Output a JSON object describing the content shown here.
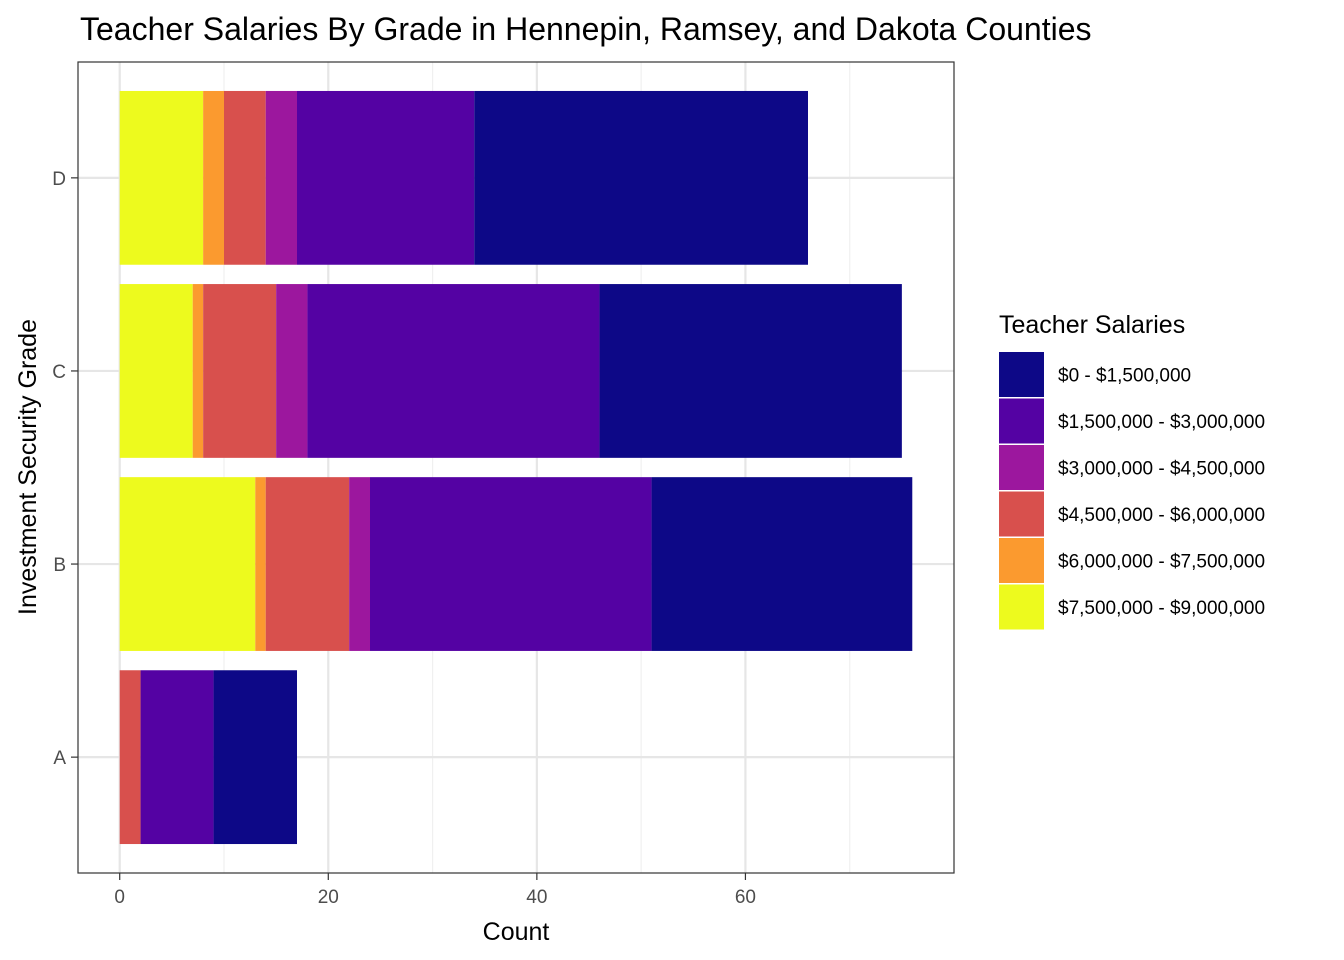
{
  "chart_data": {
    "type": "bar",
    "orientation": "horizontal",
    "stacked": true,
    "title": "Teacher Salaries By Grade in Hennepin, Ramsey, and Dakota Counties",
    "xlabel": "Count",
    "ylabel": "Investment Security Grade",
    "xlim": [
      -4,
      80
    ],
    "x_ticks": [
      0,
      20,
      40,
      60
    ],
    "categories": [
      "A",
      "B",
      "C",
      "D"
    ],
    "legend": {
      "title": "Teacher Salaries",
      "position": "right"
    },
    "series": [
      {
        "name": "$0 - $1,500,000",
        "color": "#0d0887",
        "values": [
          8,
          25,
          29,
          32
        ]
      },
      {
        "name": "$1,500,000 - $3,000,000",
        "color": "#5402a3",
        "values": [
          7,
          27,
          28,
          17
        ]
      },
      {
        "name": "$3,000,000 - $4,500,000",
        "color": "#9c179e",
        "values": [
          0,
          2,
          3,
          3
        ]
      },
      {
        "name": "$4,500,000 - $6,000,000",
        "color": "#d8504d",
        "values": [
          2,
          8,
          7,
          4
        ]
      },
      {
        "name": "$6,000,000 - $7,500,000",
        "color": "#fb9a2f",
        "values": [
          0,
          1,
          1,
          2
        ]
      },
      {
        "name": "$7,500,000 - $9,000,000",
        "color": "#edfa1e",
        "values": [
          0,
          13,
          7,
          8
        ]
      }
    ],
    "grid": true
  }
}
